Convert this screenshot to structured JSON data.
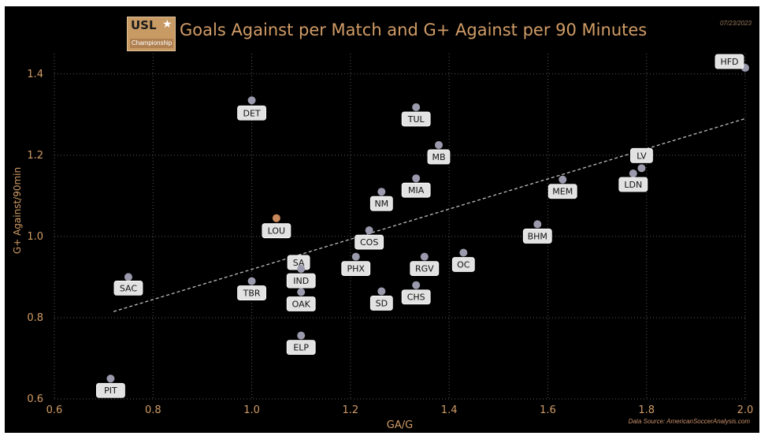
{
  "header": {
    "logo_text": "USL",
    "logo_sub": "Championship",
    "title": "Goals Against per Match and G+ Against per 90 Minutes",
    "date": "07/23/2023"
  },
  "footer": {
    "source": "Data Source: AmericanSoccerAnalysis.com"
  },
  "colors": {
    "background": "#000000",
    "accent": "#d19c67",
    "point": "#9a9aac",
    "highlight_point": "#c8885a",
    "label_bg": "#e2e2e2",
    "trend": "#bfbfbf"
  },
  "chart_data": {
    "type": "scatter",
    "title": "Goals Against per Match and G+ Against per 90 Minutes",
    "xlabel": "GA/G",
    "ylabel": "G+ Against/90min",
    "xlim": [
      0.6,
      2.0
    ],
    "ylim": [
      0.6,
      1.45
    ],
    "xticks": [
      "0.6",
      "0.8",
      "1.0",
      "1.2",
      "1.4",
      "1.6",
      "1.8",
      "2.0"
    ],
    "yticks": [
      "0.6",
      "0.8",
      "1.0",
      "1.2",
      "1.4"
    ],
    "grid": true,
    "trendline": {
      "x": [
        0.72,
        2.0
      ],
      "y": [
        0.815,
        1.29
      ]
    },
    "points": [
      {
        "team": "HFD",
        "x": 2.0,
        "y": 1.415
      },
      {
        "team": "DET",
        "x": 1.0,
        "y": 1.335
      },
      {
        "team": "TUL",
        "x": 1.333,
        "y": 1.318
      },
      {
        "team": "MB",
        "x": 1.379,
        "y": 1.225
      },
      {
        "team": "LV",
        "x": 1.79,
        "y": 1.168
      },
      {
        "team": "LDN",
        "x": 1.773,
        "y": 1.155
      },
      {
        "team": "MIA",
        "x": 1.333,
        "y": 1.143
      },
      {
        "team": "MEM",
        "x": 1.63,
        "y": 1.14
      },
      {
        "team": "NM",
        "x": 1.263,
        "y": 1.11
      },
      {
        "team": "LOU",
        "x": 1.05,
        "y": 1.045,
        "highlight": true
      },
      {
        "team": "BHM",
        "x": 1.579,
        "y": 1.03
      },
      {
        "team": "COS",
        "x": 1.238,
        "y": 1.015
      },
      {
        "team": "OC",
        "x": 1.429,
        "y": 0.96
      },
      {
        "team": "PHX",
        "x": 1.211,
        "y": 0.95
      },
      {
        "team": "RGV",
        "x": 1.35,
        "y": 0.95
      },
      {
        "team": "SA",
        "x": 1.095,
        "y": 0.93
      },
      {
        "team": "IND",
        "x": 1.1,
        "y": 0.92
      },
      {
        "team": "SAC",
        "x": 0.75,
        "y": 0.9
      },
      {
        "team": "TBR",
        "x": 1.0,
        "y": 0.89
      },
      {
        "team": "CHS",
        "x": 1.333,
        "y": 0.88
      },
      {
        "team": "SD",
        "x": 1.263,
        "y": 0.865
      },
      {
        "team": "OAK",
        "x": 1.1,
        "y": 0.863
      },
      {
        "team": "ELP",
        "x": 1.1,
        "y": 0.756
      },
      {
        "team": "PIT",
        "x": 0.714,
        "y": 0.65
      }
    ]
  }
}
